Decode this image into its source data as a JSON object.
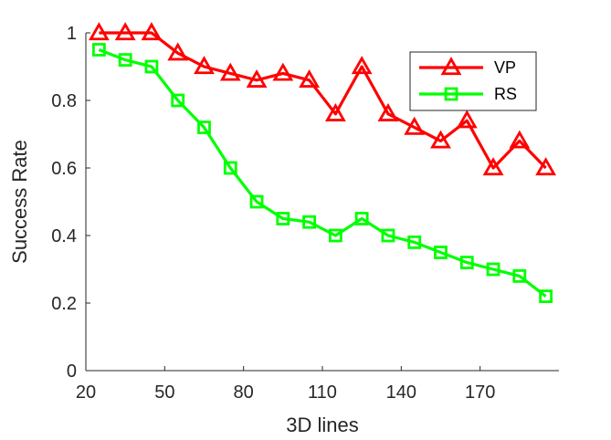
{
  "chart_data": {
    "type": "line",
    "xlabel": "3D lines",
    "ylabel": "Success Rate",
    "xlim": [
      20,
      200
    ],
    "ylim": [
      0,
      1
    ],
    "xticks": [
      20,
      50,
      80,
      110,
      140,
      170
    ],
    "yticks": [
      0,
      0.2,
      0.4,
      0.6,
      0.8,
      1
    ],
    "ytick_labels": [
      "0",
      "0.2",
      "0.4",
      "0.6",
      "0.8",
      "1"
    ],
    "grid": false,
    "legend_position": "top-right",
    "x": [
      25,
      35,
      45,
      55,
      65,
      75,
      85,
      95,
      105,
      115,
      125,
      135,
      145,
      155,
      165,
      175,
      185,
      195
    ],
    "series": [
      {
        "name": "VP",
        "color": "#ff0000",
        "marker": "triangle",
        "values": [
          1.0,
          1.0,
          1.0,
          0.94,
          0.9,
          0.88,
          0.86,
          0.88,
          0.86,
          0.76,
          0.9,
          0.76,
          0.72,
          0.68,
          0.74,
          0.6,
          0.68,
          0.6
        ]
      },
      {
        "name": "RS",
        "color": "#00ff00",
        "marker": "square",
        "values": [
          0.95,
          0.92,
          0.9,
          0.8,
          0.72,
          0.6,
          0.5,
          0.45,
          0.44,
          0.4,
          0.45,
          0.4,
          0.38,
          0.35,
          0.32,
          0.3,
          0.28,
          0.22
        ]
      }
    ]
  }
}
